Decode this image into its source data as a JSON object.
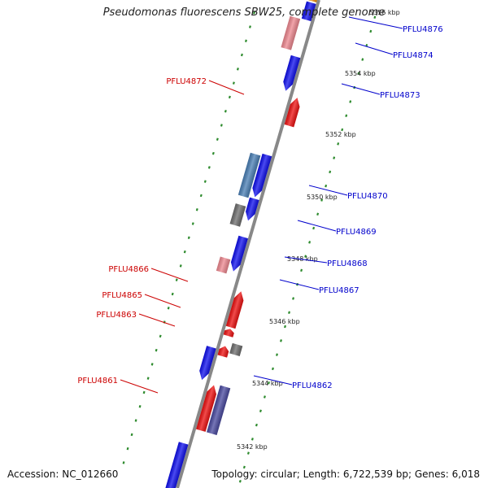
{
  "title": "Pseudomonas fluorescens SBW25, complete genome",
  "accession": "Accession: NC_012660",
  "summary": "Topology: circular; Length: 6,722,539 bp; Genes: 6,018",
  "colors": {
    "backbone": "#888888",
    "forward_label": "#0000cc",
    "reverse_label": "#cc0000",
    "tick": "#2e8b2e",
    "gene_blue": "#1010ee",
    "gene_red": "#ee1111",
    "gene_pink": "#ee8890",
    "gene_gray": "#6e6e6e",
    "gene_steel": "#4a7fb5",
    "gene_navy": "#4a4aa0",
    "gene_orange": "#f0900a"
  },
  "kbp_ticks": [
    {
      "label": "5356 kbp"
    },
    {
      "label": "5354 kbp"
    },
    {
      "label": "5352 kbp"
    },
    {
      "label": "5350 kbp"
    },
    {
      "label": "5348 kbp"
    },
    {
      "label": "5346 kbp"
    },
    {
      "label": "5344 kbp"
    },
    {
      "label": "5342 kbp"
    }
  ],
  "gene_labels_forward": [
    "PFLU4876",
    "PFLU4874",
    "PFLU4873",
    "PFLU4870",
    "PFLU4869",
    "PFLU4868",
    "PFLU4867",
    "PFLU4862"
  ],
  "gene_labels_reverse": [
    "PFLU4872",
    "PFLU4866",
    "PFLU4865",
    "PFLU4863",
    "PFLU4861"
  ]
}
